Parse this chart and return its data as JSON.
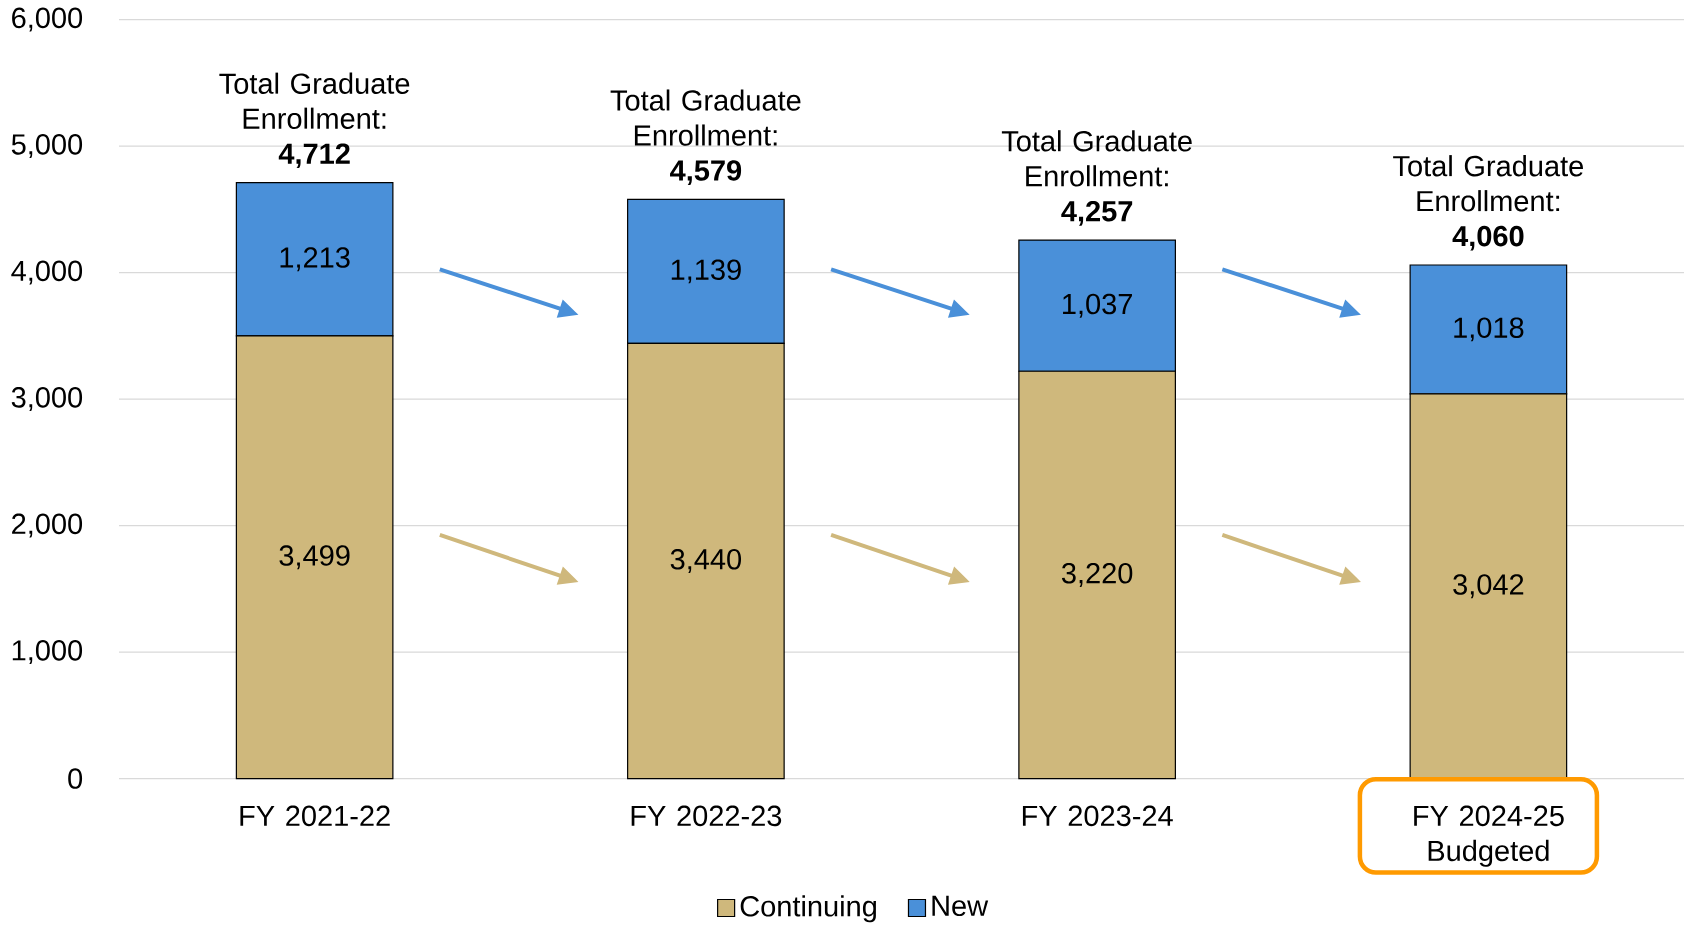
{
  "chart_data": {
    "type": "bar",
    "stacked": true,
    "categories": [
      "FY 2021-22",
      "FY 2022-23",
      "FY 2023-24",
      "FY 2024-25 Budgeted"
    ],
    "series": [
      {
        "name": "Continuing",
        "color": "#cfb87c",
        "values": [
          3499,
          3440,
          3220,
          3042
        ],
        "value_labels": [
          "3,499",
          "3,440",
          "3,220",
          "3,042"
        ]
      },
      {
        "name": "New",
        "color": "#4a90d9",
        "values": [
          1213,
          1139,
          1037,
          1018
        ],
        "value_labels": [
          "1,213",
          "1,139",
          "1,037",
          "1,018"
        ]
      }
    ],
    "totals": [
      "Total Graduate Enrollment: **4,712**",
      "Total Graduate Enrollment: **4,579**",
      "Total Graduate Enrollment: **4,257**",
      "Total Graduate Enrollment: **4,060**"
    ],
    "ylim": [
      0,
      6000
    ],
    "yticks": [
      0,
      {
        "value": 1000,
        "label": "1,000"
      },
      {
        "value": 2000,
        "label": "2,000"
      },
      {
        "value": 3000,
        "label": "3,000"
      },
      {
        "value": 4000,
        "label": "4,000"
      },
      {
        "value": 5000,
        "label": "5,000"
      },
      {
        "value": 6000,
        "label": "6,000"
      }
    ],
    "grid": "y",
    "legend": "bottom"
  }
}
